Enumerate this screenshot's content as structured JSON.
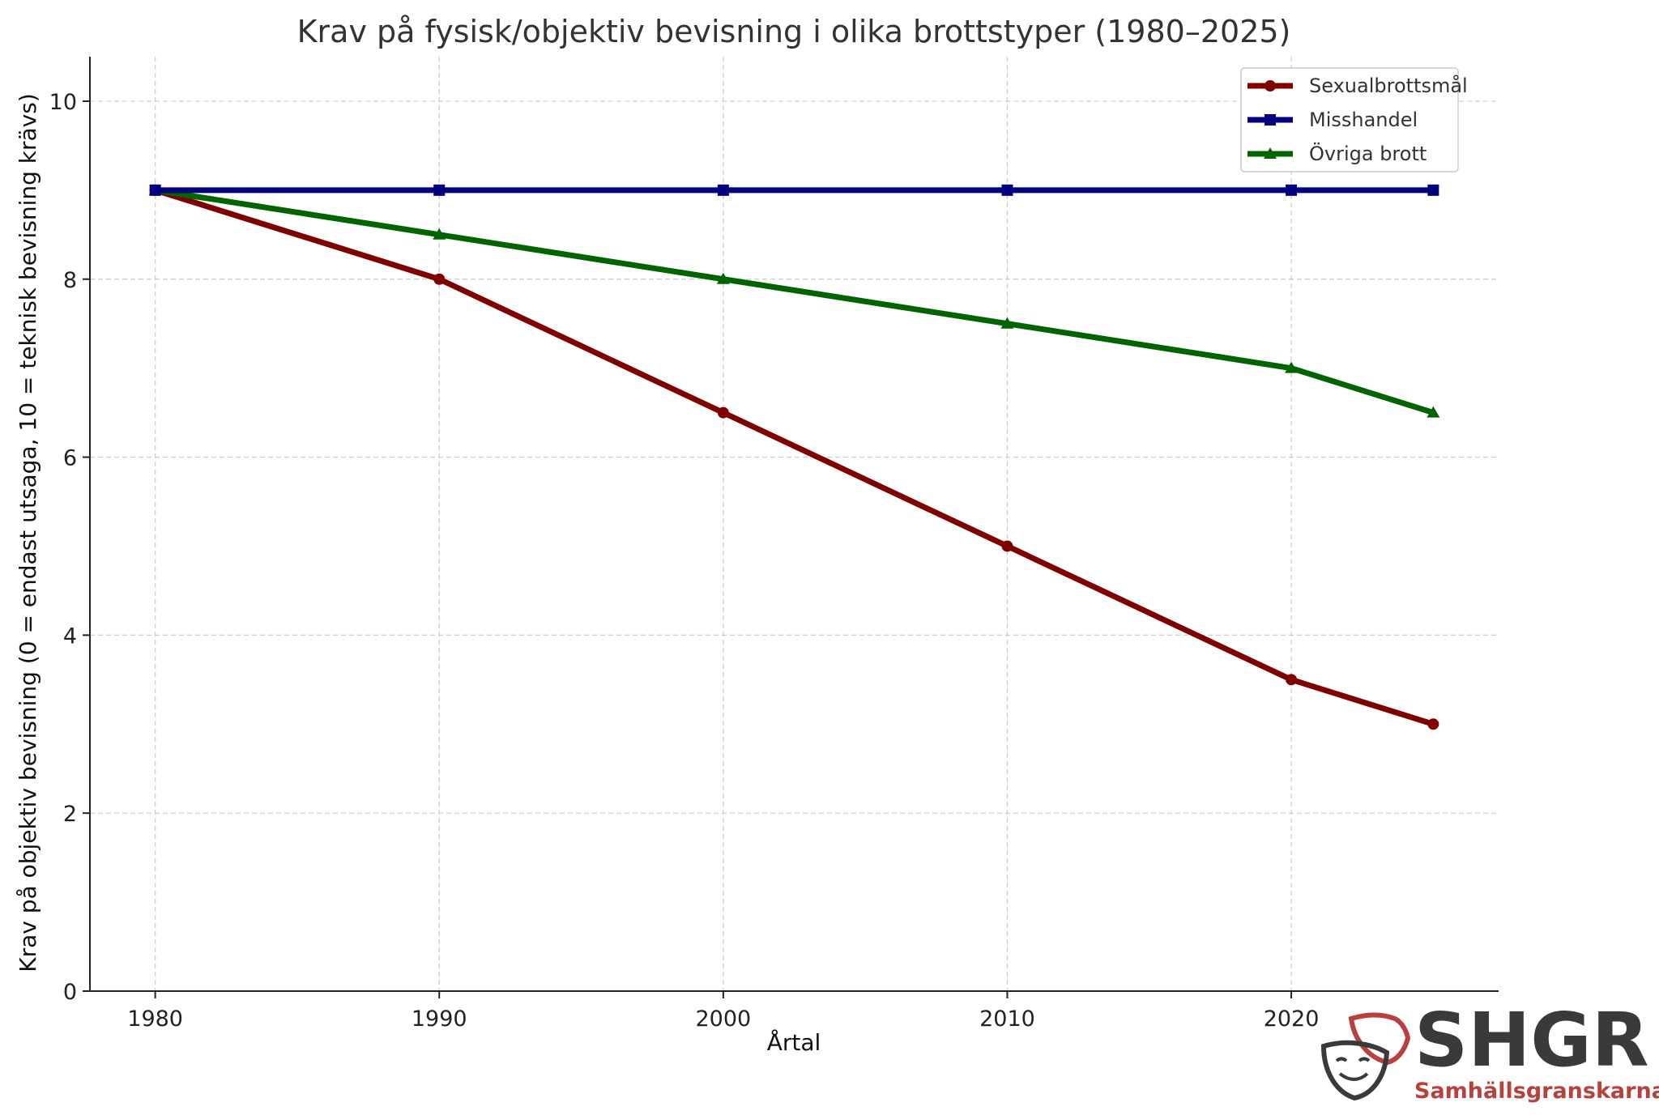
{
  "chart_data": {
    "type": "line",
    "title": "Krav på fysisk/objektiv bevisning i olika brottstyper (1980–2025)",
    "xlabel": "Årtal",
    "ylabel": "Krav på objektiv bevisning (0 = endast utsaga, 10 = teknisk bevisning krävs)",
    "x": [
      1980,
      1990,
      2000,
      2010,
      2020,
      2025
    ],
    "xlim": [
      1977.7,
      2027.3
    ],
    "ylim": [
      0,
      10.5
    ],
    "x_ticks": [
      1980,
      1990,
      2000,
      2010,
      2020
    ],
    "y_ticks": [
      0,
      2,
      4,
      6,
      8,
      10
    ],
    "grid": true,
    "legend_position": "top-right",
    "series": [
      {
        "name": "Sexualbrottsmål",
        "values": [
          9,
          8,
          6.5,
          5,
          3.5,
          3
        ],
        "color": "#800000",
        "marker": "circle"
      },
      {
        "name": "Misshandel",
        "values": [
          9,
          9,
          9,
          9,
          9,
          9
        ],
        "color": "#000080",
        "marker": "square"
      },
      {
        "name": "Övriga brott",
        "values": [
          9,
          8.5,
          8,
          7.5,
          7,
          6.5
        ],
        "color": "#006400",
        "marker": "triangle"
      }
    ]
  },
  "logo": {
    "name": "SHGR",
    "tagline": "Samhällsgranskarna",
    "accent_color": "#b8413d",
    "icon": "theatre-masks-icon"
  }
}
